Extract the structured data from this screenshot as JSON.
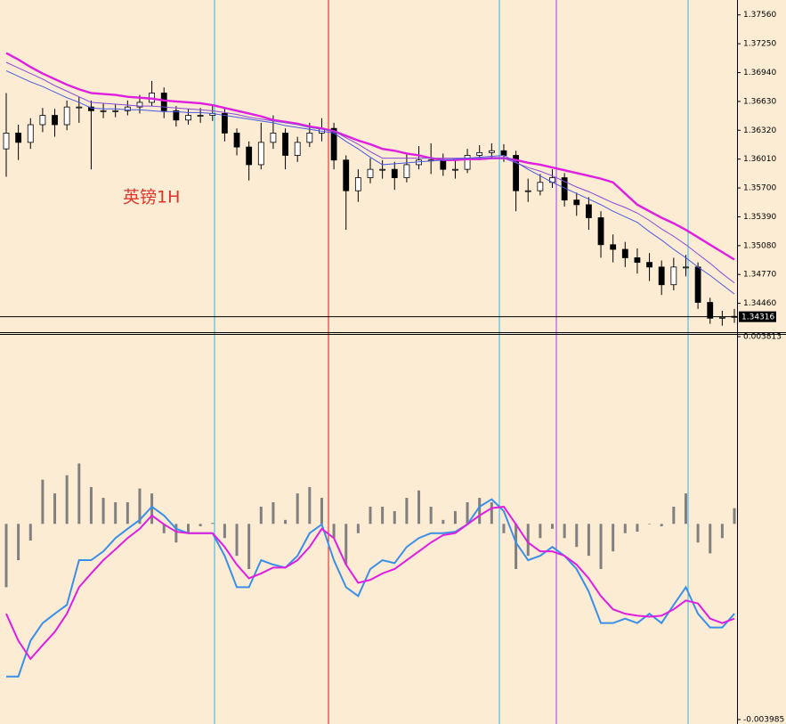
{
  "chart_data": [
    {
      "type": "candlestick",
      "annotation": "英镑1H",
      "up_color": "#ffffff",
      "down_color": "#000000",
      "wick_color": "#000000",
      "open": [
        1.3612,
        1.3629,
        1.3619,
        1.3638,
        1.3648,
        1.3638,
        1.3657,
        1.3657,
        1.3653,
        1.3653,
        1.3653,
        1.3657,
        1.3662,
        1.3672,
        1.3653,
        1.3643,
        1.3648,
        1.3648,
        1.365,
        1.3629,
        1.3614,
        1.3595,
        1.3619,
        1.3629,
        1.3605,
        1.3619,
        1.3629,
        1.3634,
        1.36,
        1.3567,
        1.3581,
        1.359,
        1.359,
        1.3581,
        1.3595,
        1.36,
        1.36,
        1.359,
        1.359,
        1.3605,
        1.3608,
        1.361,
        1.3605,
        1.3567,
        1.3567,
        1.3576,
        1.3581,
        1.3557,
        1.3552,
        1.3538,
        1.3509,
        1.3504,
        1.3495,
        1.349,
        1.3485,
        1.3466,
        1.3485,
        1.3485,
        1.3447,
        1.343,
        1.3431
      ],
      "high": [
        1.3672,
        1.3638,
        1.3645,
        1.3656,
        1.3655,
        1.3664,
        1.3668,
        1.3664,
        1.3661,
        1.366,
        1.3664,
        1.367,
        1.3685,
        1.3678,
        1.3658,
        1.3655,
        1.3656,
        1.366,
        1.3655,
        1.3634,
        1.362,
        1.364,
        1.3648,
        1.3634,
        1.3625,
        1.364,
        1.3645,
        1.364,
        1.3605,
        1.359,
        1.3602,
        1.36,
        1.3598,
        1.3608,
        1.3615,
        1.3618,
        1.3607,
        1.36,
        1.3612,
        1.3616,
        1.3618,
        1.3617,
        1.361,
        1.358,
        1.3585,
        1.359,
        1.3586,
        1.3565,
        1.356,
        1.3545,
        1.352,
        1.3512,
        1.3505,
        1.35,
        1.3492,
        1.3495,
        1.3498,
        1.349,
        1.3452,
        1.3438,
        1.344
      ],
      "low": [
        1.3582,
        1.36,
        1.3612,
        1.363,
        1.3625,
        1.3632,
        1.364,
        1.359,
        1.3645,
        1.3646,
        1.3648,
        1.365,
        1.3658,
        1.3645,
        1.3636,
        1.3638,
        1.364,
        1.3642,
        1.362,
        1.3605,
        1.3578,
        1.359,
        1.3612,
        1.359,
        1.3598,
        1.3614,
        1.362,
        1.359,
        1.3525,
        1.3555,
        1.3575,
        1.358,
        1.3568,
        1.3576,
        1.359,
        1.3585,
        1.3583,
        1.358,
        1.3586,
        1.36,
        1.3603,
        1.3598,
        1.3545,
        1.3555,
        1.3562,
        1.357,
        1.355,
        1.354,
        1.3525,
        1.3495,
        1.349,
        1.3485,
        1.3478,
        1.347,
        1.3455,
        1.346,
        1.3475,
        1.344,
        1.3424,
        1.3422,
        1.3425
      ],
      "close": [
        1.3629,
        1.3619,
        1.3638,
        1.3648,
        1.3638,
        1.3657,
        1.3657,
        1.3653,
        1.3653,
        1.3653,
        1.3657,
        1.3662,
        1.3672,
        1.3653,
        1.3643,
        1.3648,
        1.3648,
        1.365,
        1.3629,
        1.3614,
        1.3595,
        1.3619,
        1.3629,
        1.3605,
        1.3619,
        1.3629,
        1.3634,
        1.36,
        1.3567,
        1.3581,
        1.359,
        1.359,
        1.3581,
        1.3595,
        1.36,
        1.36,
        1.359,
        1.359,
        1.3605,
        1.3608,
        1.361,
        1.3605,
        1.3567,
        1.3567,
        1.3576,
        1.3581,
        1.3557,
        1.3552,
        1.3538,
        1.3509,
        1.3504,
        1.3495,
        1.349,
        1.3485,
        1.3466,
        1.3485,
        1.3485,
        1.3447,
        1.343,
        1.3431,
        1.3432
      ],
      "lines": [
        {
          "color": "#e01ee0",
          "values": [
            1.3715,
            1.3708,
            1.37,
            1.3693,
            1.3687,
            1.3681,
            1.3676,
            1.3672,
            1.3671,
            1.367,
            1.3668,
            1.3667,
            1.3666,
            1.3664,
            1.3663,
            1.3662,
            1.3661,
            1.3659,
            1.3656,
            1.3653,
            1.365,
            1.3647,
            1.3643,
            1.3641,
            1.3639,
            1.3636,
            1.3634,
            1.3631,
            1.3626,
            1.3621,
            1.3617,
            1.3612,
            1.361,
            1.3607,
            1.3605,
            1.3602,
            1.36,
            1.36,
            1.3601,
            1.3601,
            1.3602,
            1.3602,
            1.36,
            1.3597,
            1.3595,
            1.3592,
            1.3589,
            1.3586,
            1.3583,
            1.358,
            1.3576,
            1.3564,
            1.3552,
            1.3545,
            1.3538,
            1.3532,
            1.3525,
            1.3517,
            1.3509,
            1.3501,
            1.3493
          ]
        },
        {
          "color": "#8a4ad8",
          "values": [
            1.3705,
            1.3699,
            1.3693,
            1.3687,
            1.368,
            1.3674,
            1.3668,
            1.3662,
            1.3661,
            1.366,
            1.3659,
            1.3658,
            1.3658,
            1.3657,
            1.3656,
            1.3655,
            1.3654,
            1.3653,
            1.3651,
            1.3649,
            1.3646,
            1.3644,
            1.3642,
            1.364,
            1.3638,
            1.3635,
            1.3633,
            1.3631,
            1.3624,
            1.3617,
            1.3609,
            1.3602,
            1.3602,
            1.3602,
            1.3602,
            1.3602,
            1.3602,
            1.3602,
            1.3602,
            1.3602,
            1.3602,
            1.3602,
            1.3597,
            1.3592,
            1.3588,
            1.3583,
            1.3577,
            1.3571,
            1.3566,
            1.356,
            1.3554,
            1.3549,
            1.3543,
            1.3535,
            1.3526,
            1.3518,
            1.3509,
            1.3499,
            1.3489,
            1.3478,
            1.3468
          ]
        },
        {
          "color": "#4a5ae0",
          "values": [
            1.3696,
            1.369,
            1.3684,
            1.3679,
            1.3673,
            1.3667,
            1.3662,
            1.3656,
            1.3655,
            1.3655,
            1.3654,
            1.3654,
            1.3653,
            1.3652,
            1.3652,
            1.3651,
            1.3651,
            1.365,
            1.3648,
            1.3646,
            1.3644,
            1.3642,
            1.364,
            1.3637,
            1.3635,
            1.3633,
            1.3631,
            1.3629,
            1.362,
            1.3612,
            1.3603,
            1.3595,
            1.3596,
            1.3597,
            1.3598,
            1.3599,
            1.36,
            1.3601,
            1.3602,
            1.3603,
            1.3604,
            1.3605,
            1.3598,
            1.359,
            1.3583,
            1.3576,
            1.357,
            1.3564,
            1.3558,
            1.3552,
            1.3545,
            1.3539,
            1.3533,
            1.3523,
            1.3514,
            1.3504,
            1.3495,
            1.3485,
            1.3476,
            1.3466,
            1.3456
          ]
        }
      ],
      "last_price": 1.34316,
      "ylim": [
        1.3415,
        1.3772
      ],
      "yticks": [
        {
          "value": 1.3756,
          "label": "1.37560"
        },
        {
          "value": 1.3725,
          "label": "1.37250"
        },
        {
          "value": 1.3694,
          "label": "1.36940"
        },
        {
          "value": 1.3663,
          "label": "1.36630"
        },
        {
          "value": 1.3632,
          "label": "1.36320"
        },
        {
          "value": 1.3601,
          "label": "1.36010"
        },
        {
          "value": 1.357,
          "label": "1.35700"
        },
        {
          "value": 1.3539,
          "label": "1.35390"
        },
        {
          "value": 1.3508,
          "label": "1.35080"
        },
        {
          "value": 1.3477,
          "label": "1.34770"
        },
        {
          "value": 1.3446,
          "label": "1.34460"
        }
      ]
    },
    {
      "type": "macd",
      "hist_color": "#808080",
      "hist": [
        -0.00129,
        -0.00074,
        -0.00034,
        0.0009,
        0.00062,
        0.00099,
        0.00123,
        0.00075,
        0.00053,
        0.00044,
        0.00044,
        0.00072,
        0.00062,
        -0.00019,
        -0.00038,
        -0.00019,
        -5e-05,
        2e-05,
        -0.00029,
        -0.00065,
        -0.00092,
        0.00035,
        0.00044,
        8e-05,
        0.00062,
        0.00075,
        0.00053,
        -0.00029,
        -0.00083,
        -0.00019,
        0.00035,
        0.00035,
        0.00026,
        0.00053,
        0.00068,
        0.00035,
        8e-05,
        0.00026,
        0.00044,
        0.00053,
        0.00044,
        -0.00019,
        -0.00092,
        -0.00065,
        -0.00029,
        -0.0001,
        -0.00029,
        -0.00047,
        -0.00065,
        -0.00092,
        -0.00056,
        -0.00019,
        -0.00016,
        -1e-05,
        -5e-05,
        0.00035,
        0.00062,
        -0.00038,
        -0.0006,
        -0.00029,
        0.00032
      ],
      "lines": [
        {
          "color": "#3a8fe8",
          "values": [
            -0.00311,
            -0.00311,
            -0.00238,
            -0.00202,
            -0.00183,
            -0.00165,
            -0.00074,
            -0.00074,
            -0.00056,
            -0.00029,
            -0.0001,
            8e-05,
            0.00035,
            0.00017,
            -0.0001,
            -0.00019,
            -0.00019,
            -0.00019,
            -0.00065,
            -0.00129,
            -0.00129,
            -0.00074,
            -0.00083,
            -0.00089,
            -0.00065,
            -0.00019,
            -1e-05,
            -0.00074,
            -0.00129,
            -0.00147,
            -0.00092,
            -0.00074,
            -0.0008,
            -0.00047,
            -0.00029,
            -0.00019,
            -0.00019,
            -0.00016,
            -1e-05,
            0.00035,
            0.0005,
            0.00026,
            -0.00038,
            -0.00074,
            -0.00065,
            -0.00047,
            -0.00065,
            -0.00092,
            -0.00138,
            -0.00202,
            -0.00202,
            -0.00193,
            -0.00202,
            -0.00183,
            -0.00202,
            -0.00165,
            -0.00129,
            -0.00183,
            -0.00211,
            -0.00211,
            -0.00183
          ]
        },
        {
          "color": "#e01ee0",
          "values": [
            -0.00183,
            -0.00238,
            -0.00275,
            -0.00247,
            -0.0022,
            -0.00183,
            -0.00129,
            -0.00101,
            -0.00074,
            -0.00052,
            -0.00029,
            -0.0001,
            0.00017,
            -1e-05,
            -0.00016,
            -0.00019,
            -0.00019,
            -0.00019,
            -0.00047,
            -0.00083,
            -0.00111,
            -0.00101,
            -0.00089,
            -0.00089,
            -0.00074,
            -0.00047,
            -0.0001,
            -0.00029,
            -0.00083,
            -0.0012,
            -0.00114,
            -0.00101,
            -0.00092,
            -0.00074,
            -0.00056,
            -0.00038,
            -0.00023,
            -0.00019,
            -1e-05,
            0.00017,
            0.00032,
            0.00035,
            -1e-05,
            -0.00038,
            -0.00056,
            -0.00056,
            -0.00065,
            -0.00083,
            -0.00111,
            -0.00147,
            -0.00174,
            -0.00183,
            -0.00187,
            -0.00189,
            -0.00187,
            -0.00174,
            -0.00156,
            -0.00162,
            -0.00193,
            -0.00202,
            -0.00193
          ]
        }
      ],
      "ylim": [
        -0.003985,
        0.003813
      ],
      "yticks": [
        0.003813,
        -0.003985
      ]
    }
  ]
}
